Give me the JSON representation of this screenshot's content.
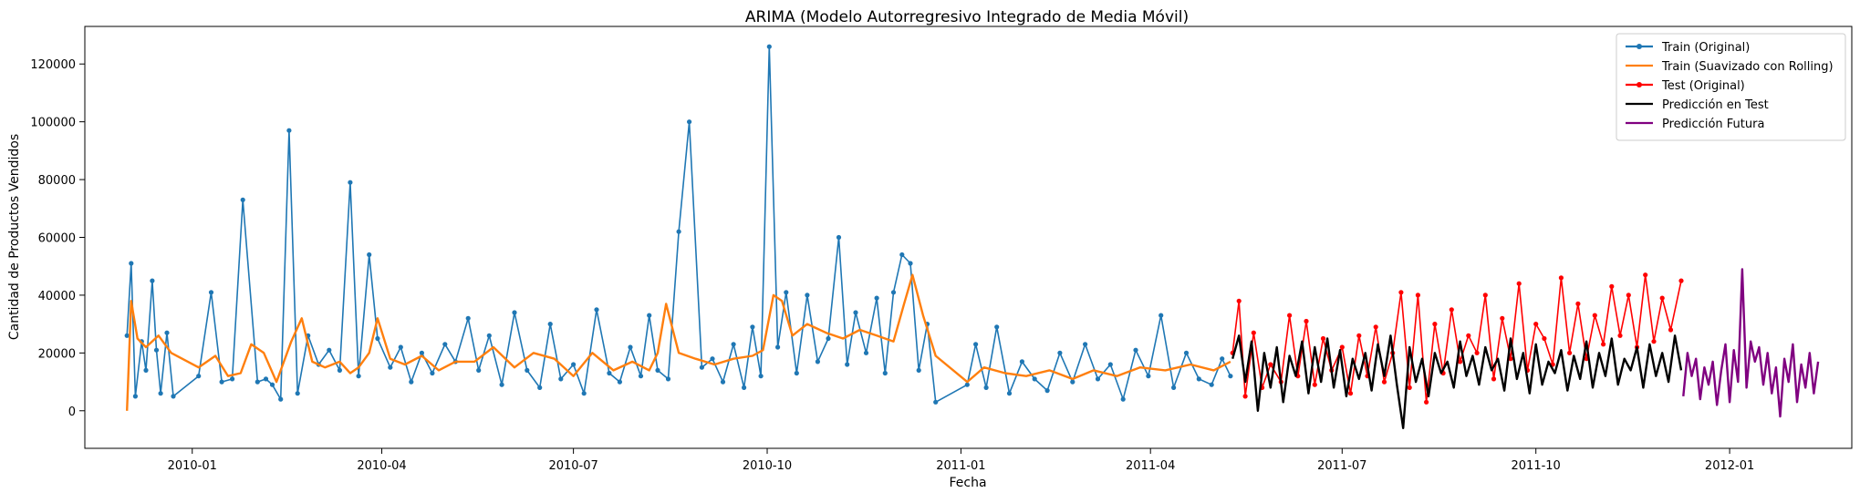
{
  "chart_data": {
    "type": "line",
    "title": "ARIMA (Modelo Autorregresivo Integrado de Media Móvil)",
    "xlabel": "Fecha",
    "ylabel": "Cantidad de Productos Vendidos",
    "xlim": [
      "2009-11-11",
      "2012-02-28"
    ],
    "ylim": [
      -13000,
      133000
    ],
    "x_ticks": [
      "2010-01-01",
      "2010-04-01",
      "2010-07-01",
      "2010-10-01",
      "2011-01-01",
      "2011-04-01",
      "2011-07-01",
      "2011-10-01",
      "2012-01-01"
    ],
    "x_tick_labels": [
      "2010-01",
      "2010-04",
      "2010-07",
      "2010-10",
      "2011-01",
      "2011-04",
      "2011-07",
      "2011-10",
      "2012-01"
    ],
    "y_ticks": [
      0,
      20000,
      40000,
      60000,
      80000,
      100000,
      120000
    ],
    "y_tick_labels": [
      "0",
      "20000",
      "40000",
      "60000",
      "80000",
      "100000",
      "120000"
    ],
    "grid": false,
    "legend_position": "upper right",
    "series": [
      {
        "name": "Train (Original)",
        "color": "#1f77b4",
        "marker": "circle",
        "x": [
          "2009-12-01",
          "2009-12-03",
          "2009-12-05",
          "2009-12-08",
          "2009-12-10",
          "2009-12-13",
          "2009-12-15",
          "2009-12-17",
          "2009-12-20",
          "2009-12-23",
          "2010-01-04",
          "2010-01-10",
          "2010-01-15",
          "2010-01-20",
          "2010-01-25",
          "2010-02-01",
          "2010-02-05",
          "2010-02-08",
          "2010-02-12",
          "2010-02-16",
          "2010-02-20",
          "2010-02-25",
          "2010-03-02",
          "2010-03-07",
          "2010-03-12",
          "2010-03-17",
          "2010-03-21",
          "2010-03-26",
          "2010-03-30",
          "2010-04-05",
          "2010-04-10",
          "2010-04-15",
          "2010-04-20",
          "2010-04-25",
          "2010-05-01",
          "2010-05-06",
          "2010-05-12",
          "2010-05-17",
          "2010-05-22",
          "2010-05-28",
          "2010-06-03",
          "2010-06-09",
          "2010-06-15",
          "2010-06-20",
          "2010-06-25",
          "2010-07-01",
          "2010-07-06",
          "2010-07-12",
          "2010-07-18",
          "2010-07-23",
          "2010-07-28",
          "2010-08-02",
          "2010-08-06",
          "2010-08-10",
          "2010-08-15",
          "2010-08-20",
          "2010-08-25",
          "2010-08-31",
          "2010-09-05",
          "2010-09-10",
          "2010-09-15",
          "2010-09-20",
          "2010-09-24",
          "2010-09-28",
          "2010-10-02",
          "2010-10-06",
          "2010-10-10",
          "2010-10-15",
          "2010-10-20",
          "2010-10-25",
          "2010-10-30",
          "2010-11-04",
          "2010-11-08",
          "2010-11-12",
          "2010-11-17",
          "2010-11-22",
          "2010-11-26",
          "2010-11-30",
          "2010-12-04",
          "2010-12-08",
          "2010-12-12",
          "2010-12-16",
          "2010-12-20",
          "2011-01-04",
          "2011-01-08",
          "2011-01-13",
          "2011-01-18",
          "2011-01-24",
          "2011-01-30",
          "2011-02-05",
          "2011-02-11",
          "2011-02-17",
          "2011-02-23",
          "2011-03-01",
          "2011-03-07",
          "2011-03-13",
          "2011-03-19",
          "2011-03-25",
          "2011-03-31",
          "2011-04-06",
          "2011-04-12",
          "2011-04-18",
          "2011-04-24",
          "2011-04-30",
          "2011-05-05",
          "2011-05-09"
        ],
        "values": [
          26000,
          51000,
          5000,
          24000,
          14000,
          45000,
          21000,
          6000,
          27000,
          5000,
          12000,
          41000,
          10000,
          11000,
          73000,
          10000,
          11000,
          9000,
          4000,
          97000,
          6000,
          26000,
          16000,
          21000,
          14000,
          79000,
          12000,
          54000,
          25000,
          15000,
          22000,
          10000,
          20000,
          13000,
          23000,
          17000,
          32000,
          14000,
          26000,
          9000,
          34000,
          14000,
          8000,
          30000,
          11000,
          16000,
          6000,
          35000,
          13000,
          10000,
          22000,
          12000,
          33000,
          14000,
          11000,
          62000,
          100000,
          15000,
          18000,
          10000,
          23000,
          8000,
          29000,
          12000,
          126000,
          22000,
          41000,
          13000,
          40000,
          17000,
          25000,
          60000,
          16000,
          34000,
          20000,
          39000,
          13000,
          41000,
          54000,
          51000,
          14000,
          30000,
          3000,
          9000,
          23000,
          8000,
          29000,
          6000,
          17000,
          11000,
          7000,
          20000,
          10000,
          23000,
          11000,
          16000,
          4000,
          21000,
          12000,
          33000,
          8000,
          20000,
          11000,
          9000,
          18000,
          12000
        ]
      },
      {
        "name": "Train (Suavizado con Rolling)",
        "color": "#ff7f0e",
        "marker": "none",
        "x": [
          "2009-12-01",
          "2009-12-03",
          "2009-12-06",
          "2009-12-10",
          "2009-12-16",
          "2009-12-22",
          "2010-01-04",
          "2010-01-12",
          "2010-01-18",
          "2010-01-24",
          "2010-01-29",
          "2010-02-04",
          "2010-02-10",
          "2010-02-17",
          "2010-02-22",
          "2010-02-27",
          "2010-03-05",
          "2010-03-12",
          "2010-03-17",
          "2010-03-21",
          "2010-03-26",
          "2010-03-30",
          "2010-04-05",
          "2010-04-12",
          "2010-04-20",
          "2010-04-28",
          "2010-05-06",
          "2010-05-15",
          "2010-05-24",
          "2010-06-03",
          "2010-06-12",
          "2010-06-22",
          "2010-07-01",
          "2010-07-10",
          "2010-07-20",
          "2010-07-29",
          "2010-08-06",
          "2010-08-10",
          "2010-08-14",
          "2010-08-20",
          "2010-08-28",
          "2010-09-06",
          "2010-09-15",
          "2010-09-24",
          "2010-09-29",
          "2010-10-04",
          "2010-10-08",
          "2010-10-13",
          "2010-10-20",
          "2010-10-29",
          "2010-11-06",
          "2010-11-14",
          "2010-11-22",
          "2010-11-30",
          "2010-12-05",
          "2010-12-09",
          "2010-12-14",
          "2010-12-20",
          "2011-01-04",
          "2011-01-12",
          "2011-01-22",
          "2011-02-01",
          "2011-02-12",
          "2011-02-23",
          "2011-03-05",
          "2011-03-16",
          "2011-03-27",
          "2011-04-08",
          "2011-04-20",
          "2011-05-01",
          "2011-05-09"
        ],
        "values": [
          0,
          38000,
          25000,
          22000,
          26000,
          20000,
          15000,
          19000,
          12000,
          13000,
          23000,
          20000,
          10000,
          24000,
          32000,
          17000,
          15000,
          17000,
          13000,
          15000,
          20000,
          32000,
          18000,
          16000,
          19000,
          14000,
          17000,
          17000,
          22000,
          15000,
          20000,
          18000,
          12000,
          20000,
          14000,
          17000,
          14000,
          20000,
          37000,
          20000,
          18000,
          16000,
          18000,
          19000,
          21000,
          40000,
          38000,
          26000,
          30000,
          27000,
          25000,
          28000,
          26000,
          24000,
          37000,
          47000,
          33000,
          19000,
          10000,
          15000,
          13000,
          12000,
          14000,
          11000,
          14000,
          12000,
          15000,
          14000,
          16000,
          14000,
          17000
        ]
      },
      {
        "name": "Test (Original)",
        "color": "#ff0000",
        "marker": "circle",
        "x": [
          "2011-05-10",
          "2011-05-13",
          "2011-05-16",
          "2011-05-20",
          "2011-05-24",
          "2011-05-28",
          "2011-06-02",
          "2011-06-06",
          "2011-06-10",
          "2011-06-14",
          "2011-06-18",
          "2011-06-22",
          "2011-06-26",
          "2011-07-01",
          "2011-07-05",
          "2011-07-09",
          "2011-07-13",
          "2011-07-17",
          "2011-07-21",
          "2011-07-25",
          "2011-07-29",
          "2011-08-02",
          "2011-08-06",
          "2011-08-10",
          "2011-08-14",
          "2011-08-18",
          "2011-08-22",
          "2011-08-26",
          "2011-08-30",
          "2011-09-03",
          "2011-09-07",
          "2011-09-11",
          "2011-09-15",
          "2011-09-19",
          "2011-09-23",
          "2011-09-27",
          "2011-10-01",
          "2011-10-05",
          "2011-10-09",
          "2011-10-13",
          "2011-10-17",
          "2011-10-21",
          "2011-10-25",
          "2011-10-29",
          "2011-11-02",
          "2011-11-06",
          "2011-11-10",
          "2011-11-14",
          "2011-11-18",
          "2011-11-22",
          "2011-11-26",
          "2011-11-30",
          "2011-12-04",
          "2011-12-09"
        ],
        "values": [
          20000,
          38000,
          5000,
          27000,
          8000,
          16000,
          10000,
          33000,
          12000,
          31000,
          9000,
          25000,
          14000,
          22000,
          6000,
          26000,
          12000,
          29000,
          10000,
          20000,
          41000,
          8000,
          40000,
          3000,
          30000,
          13000,
          35000,
          17000,
          26000,
          20000,
          40000,
          11000,
          32000,
          18000,
          44000,
          14000,
          30000,
          25000,
          16000,
          46000,
          20000,
          37000,
          18000,
          33000,
          23000,
          43000,
          26000,
          40000,
          22000,
          47000,
          24000,
          39000,
          28000,
          45000
        ]
      },
      {
        "name": "Predicción en Test",
        "color": "#000000",
        "marker": "none",
        "x": [
          "2011-05-10",
          "2011-05-13",
          "2011-05-16",
          "2011-05-19",
          "2011-05-22",
          "2011-05-25",
          "2011-05-28",
          "2011-05-31",
          "2011-06-03",
          "2011-06-06",
          "2011-06-09",
          "2011-06-12",
          "2011-06-15",
          "2011-06-18",
          "2011-06-21",
          "2011-06-24",
          "2011-06-27",
          "2011-06-30",
          "2011-07-03",
          "2011-07-06",
          "2011-07-09",
          "2011-07-12",
          "2011-07-15",
          "2011-07-18",
          "2011-07-21",
          "2011-07-24",
          "2011-07-27",
          "2011-07-30",
          "2011-08-02",
          "2011-08-05",
          "2011-08-08",
          "2011-08-11",
          "2011-08-14",
          "2011-08-17",
          "2011-08-20",
          "2011-08-23",
          "2011-08-26",
          "2011-08-29",
          "2011-09-01",
          "2011-09-04",
          "2011-09-07",
          "2011-09-10",
          "2011-09-13",
          "2011-09-16",
          "2011-09-19",
          "2011-09-22",
          "2011-09-25",
          "2011-09-28",
          "2011-10-01",
          "2011-10-04",
          "2011-10-07",
          "2011-10-10",
          "2011-10-13",
          "2011-10-16",
          "2011-10-19",
          "2011-10-22",
          "2011-10-25",
          "2011-10-28",
          "2011-10-31",
          "2011-11-03",
          "2011-11-06",
          "2011-11-09",
          "2011-11-12",
          "2011-11-15",
          "2011-11-18",
          "2011-11-21",
          "2011-11-24",
          "2011-11-27",
          "2011-11-30",
          "2011-12-03",
          "2011-12-06",
          "2011-12-09"
        ],
        "values": [
          18000,
          26000,
          10000,
          24000,
          0,
          20000,
          8000,
          22000,
          3000,
          19000,
          12000,
          24000,
          6000,
          22000,
          10000,
          25000,
          8000,
          21000,
          5000,
          18000,
          11000,
          20000,
          7000,
          23000,
          12000,
          26000,
          9000,
          -6000,
          22000,
          10000,
          18000,
          5000,
          20000,
          13000,
          17000,
          8000,
          24000,
          12000,
          19000,
          9000,
          22000,
          14000,
          18000,
          7000,
          25000,
          11000,
          20000,
          6000,
          23000,
          9000,
          17000,
          13000,
          21000,
          7000,
          19000,
          11000,
          24000,
          8000,
          20000,
          12000,
          25000,
          9000,
          18000,
          14000,
          22000,
          8000,
          23000,
          12000,
          20000,
          10000,
          26000,
          14000
        ]
      },
      {
        "name": "Predicción Futura",
        "color": "#800080",
        "marker": "none",
        "x": [
          "2011-12-10",
          "2011-12-12",
          "2011-12-14",
          "2011-12-16",
          "2011-12-18",
          "2011-12-20",
          "2011-12-22",
          "2011-12-24",
          "2011-12-26",
          "2011-12-28",
          "2011-12-30",
          "2012-01-01",
          "2012-01-03",
          "2012-01-05",
          "2012-01-07",
          "2012-01-09",
          "2012-01-11",
          "2012-01-13",
          "2012-01-15",
          "2012-01-17",
          "2012-01-19",
          "2012-01-21",
          "2012-01-23",
          "2012-01-25",
          "2012-01-27",
          "2012-01-29",
          "2012-01-31",
          "2012-02-02",
          "2012-02-04",
          "2012-02-06",
          "2012-02-08",
          "2012-02-10",
          "2012-02-12"
        ],
        "values": [
          5000,
          20000,
          12000,
          18000,
          4000,
          15000,
          9000,
          17000,
          2000,
          14000,
          23000,
          3000,
          21000,
          10000,
          49000,
          8000,
          24000,
          17000,
          22000,
          9000,
          20000,
          6000,
          15000,
          -2000,
          18000,
          10000,
          23000,
          3000,
          16000,
          8000,
          20000,
          6000,
          17000
        ]
      }
    ]
  }
}
